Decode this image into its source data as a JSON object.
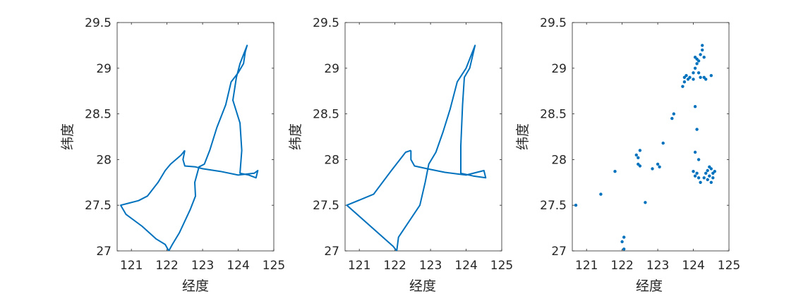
{
  "figure": {
    "background": "#ffffff",
    "axis_color": "#262626",
    "series_color": "#0072BD"
  },
  "chart_data": [
    {
      "type": "line",
      "xlabel": "经度",
      "ylabel": "纬度",
      "xlim": [
        120.6,
        125
      ],
      "ylim": [
        27,
        29.5
      ],
      "xticks": [
        "121",
        "122",
        "123",
        "124",
        "125"
      ],
      "yticks": [
        "27",
        "27.5",
        "28",
        "28.5",
        "29",
        "29.5"
      ],
      "grid": false,
      "legend": "none",
      "series": [
        {
          "color": "#0072BD",
          "points": [
            [
              122.5,
              28.1
            ],
            [
              122.4,
              28.05
            ],
            [
              122.1,
              27.95
            ],
            [
              121.95,
              27.88
            ],
            [
              121.75,
              27.75
            ],
            [
              121.45,
              27.6
            ],
            [
              121.2,
              27.55
            ],
            [
              120.9,
              27.52
            ],
            [
              120.7,
              27.5
            ],
            [
              120.85,
              27.4
            ],
            [
              121.3,
              27.27
            ],
            [
              121.7,
              27.13
            ],
            [
              121.95,
              27.07
            ],
            [
              122.05,
              27.0
            ],
            [
              122.15,
              27.07
            ],
            [
              122.35,
              27.2
            ],
            [
              122.65,
              27.45
            ],
            [
              122.8,
              27.6
            ],
            [
              122.78,
              27.75
            ],
            [
              122.9,
              27.92
            ],
            [
              123.05,
              27.95
            ],
            [
              123.2,
              28.1
            ],
            [
              123.4,
              28.35
            ],
            [
              123.65,
              28.6
            ],
            [
              123.8,
              28.85
            ],
            [
              124.0,
              28.95
            ],
            [
              124.15,
              29.05
            ],
            [
              124.2,
              29.18
            ],
            [
              124.25,
              29.25
            ],
            [
              124.05,
              29.05
            ],
            [
              123.95,
              28.9
            ],
            [
              123.85,
              28.65
            ],
            [
              124.05,
              28.4
            ],
            [
              124.1,
              28.1
            ],
            [
              124.05,
              27.85
            ],
            [
              124.3,
              27.83
            ],
            [
              124.5,
              27.8
            ],
            [
              124.55,
              27.88
            ],
            [
              124.45,
              27.85
            ],
            [
              124.0,
              27.83
            ],
            [
              123.5,
              27.87
            ],
            [
              123.0,
              27.9
            ],
            [
              122.8,
              27.92
            ],
            [
              122.5,
              27.93
            ],
            [
              122.45,
              28.0
            ],
            [
              122.5,
              28.1
            ]
          ]
        }
      ]
    },
    {
      "type": "line",
      "xlabel": "经度",
      "ylabel": "纬度",
      "xlim": [
        120.6,
        125
      ],
      "ylim": [
        27,
        29.5
      ],
      "xticks": [
        "121",
        "122",
        "123",
        "124",
        "125"
      ],
      "yticks": [
        "27",
        "27.5",
        "28",
        "28.5",
        "29",
        "29.5"
      ],
      "grid": false,
      "legend": "none",
      "series": [
        {
          "color": "#0072BD",
          "points": [
            [
              122.45,
              28.1
            ],
            [
              122.3,
              28.08
            ],
            [
              121.9,
              27.88
            ],
            [
              121.4,
              27.62
            ],
            [
              120.65,
              27.5
            ],
            [
              121.95,
              27.05
            ],
            [
              122.05,
              27.0
            ],
            [
              122.1,
              27.15
            ],
            [
              122.7,
              27.5
            ],
            [
              122.85,
              27.75
            ],
            [
              122.95,
              27.95
            ],
            [
              123.15,
              28.08
            ],
            [
              123.35,
              28.3
            ],
            [
              123.55,
              28.55
            ],
            [
              123.75,
              28.85
            ],
            [
              124.0,
              29.0
            ],
            [
              124.15,
              29.15
            ],
            [
              124.25,
              29.25
            ],
            [
              124.1,
              29.0
            ],
            [
              123.95,
              28.9
            ],
            [
              123.9,
              28.6
            ],
            [
              123.85,
              28.15
            ],
            [
              123.85,
              27.85
            ],
            [
              124.2,
              27.82
            ],
            [
              124.55,
              27.8
            ],
            [
              124.5,
              27.88
            ],
            [
              124.0,
              27.83
            ],
            [
              123.4,
              27.86
            ],
            [
              122.9,
              27.9
            ],
            [
              122.55,
              27.93
            ],
            [
              122.45,
              28.0
            ],
            [
              122.45,
              28.1
            ]
          ]
        }
      ]
    },
    {
      "type": "scatter",
      "xlabel": "经度",
      "ylabel": "纬度",
      "xlim": [
        120.6,
        125
      ],
      "ylim": [
        27,
        29.5
      ],
      "xticks": [
        "121",
        "122",
        "123",
        "124",
        "125"
      ],
      "yticks": [
        "27",
        "27.5",
        "28",
        "28.5",
        "29",
        "29.5"
      ],
      "grid": false,
      "legend": "none",
      "series": [
        {
          "color": "#0072BD",
          "points": [
            [
              120.7,
              27.5
            ],
            [
              121.4,
              27.62
            ],
            [
              121.8,
              27.87
            ],
            [
              122.0,
              27.1
            ],
            [
              122.05,
              27.15
            ],
            [
              122.05,
              27.02
            ],
            [
              122.4,
              28.05
            ],
            [
              122.45,
              28.02
            ],
            [
              122.5,
              28.1
            ],
            [
              122.45,
              27.95
            ],
            [
              122.5,
              27.93
            ],
            [
              122.65,
              27.53
            ],
            [
              122.85,
              27.9
            ],
            [
              123.0,
              27.95
            ],
            [
              123.05,
              27.92
            ],
            [
              123.15,
              28.18
            ],
            [
              123.4,
              28.45
            ],
            [
              123.45,
              28.5
            ],
            [
              123.7,
              28.8
            ],
            [
              123.75,
              28.85
            ],
            [
              123.75,
              28.9
            ],
            [
              123.8,
              28.92
            ],
            [
              123.85,
              28.88
            ],
            [
              123.9,
              28.9
            ],
            [
              124.0,
              28.95
            ],
            [
              124.05,
              29.0
            ],
            [
              124.1,
              29.05
            ],
            [
              124.1,
              29.1
            ],
            [
              124.15,
              29.08
            ],
            [
              124.2,
              29.15
            ],
            [
              124.25,
              29.2
            ],
            [
              124.25,
              29.25
            ],
            [
              124.3,
              29.12
            ],
            [
              124.15,
              28.95
            ],
            [
              124.2,
              28.9
            ],
            [
              124.3,
              28.9
            ],
            [
              124.35,
              28.88
            ],
            [
              124.5,
              28.92
            ],
            [
              124.05,
              29.12
            ],
            [
              124.0,
              28.88
            ],
            [
              124.05,
              28.58
            ],
            [
              124.1,
              28.33
            ],
            [
              124.05,
              28.08
            ],
            [
              124.15,
              28.0
            ],
            [
              124.0,
              27.87
            ],
            [
              124.05,
              27.82
            ],
            [
              124.1,
              27.85
            ],
            [
              124.15,
              27.8
            ],
            [
              124.2,
              27.75
            ],
            [
              124.3,
              27.8
            ],
            [
              124.35,
              27.85
            ],
            [
              124.4,
              27.78
            ],
            [
              124.45,
              27.82
            ],
            [
              124.5,
              27.75
            ],
            [
              124.55,
              27.8
            ],
            [
              124.55,
              27.85
            ],
            [
              124.6,
              27.87
            ],
            [
              124.5,
              27.9
            ],
            [
              124.45,
              27.92
            ],
            [
              124.4,
              27.88
            ]
          ]
        }
      ]
    }
  ]
}
